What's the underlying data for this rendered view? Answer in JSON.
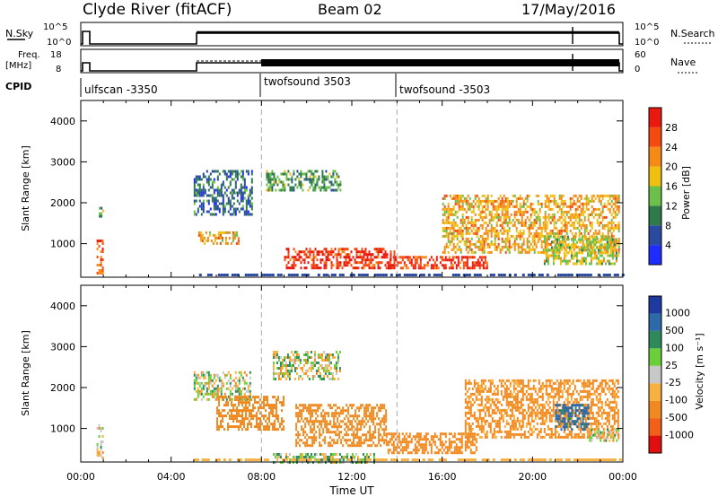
{
  "header": {
    "station": "Clyde River (fitACF)",
    "beam": "Beam 02",
    "date": "17/May/2016"
  },
  "status_panels": {
    "nsky_label": "N.Sky",
    "nsky_ticks": [
      "10^5",
      "10^0"
    ],
    "nsearch_label": "N.Search",
    "nsearch_ticks": [
      "10^5",
      "10^0"
    ],
    "freq_label_top": "Freq.",
    "freq_label_bottom": "[MHz]",
    "freq_ticks": [
      "18",
      "8"
    ],
    "nave_label": "Nave",
    "nave_ticks": [
      "60",
      "0"
    ],
    "cpid_label": "CPID",
    "cpid_segments": [
      {
        "start_hour": 0.0,
        "label": "ulfscan -3350"
      },
      {
        "start_hour": 8.0,
        "label": "twofsound 3503"
      },
      {
        "start_hour": 14.0,
        "label": "twofsound -3503"
      }
    ]
  },
  "power_colorbar": {
    "label": "Power [dB]",
    "ticks": [
      "4",
      "8",
      "12",
      "16",
      "20",
      "24",
      "28"
    ],
    "colors": [
      "#1f2cff",
      "#2a4aa0",
      "#2e7a4a",
      "#6cbf4a",
      "#f0c010",
      "#f58a18",
      "#f44a10",
      "#e81a10"
    ]
  },
  "velocity_colorbar": {
    "label": "Velocity [m s⁻¹]",
    "ticks": [
      "1000",
      "500",
      "100",
      "25",
      "-25",
      "-100",
      "-500",
      "-1000"
    ],
    "colors": [
      "#1e3aa0",
      "#2e6aa8",
      "#2e8a5a",
      "#6acf3a",
      "#c8c8c8",
      "#f8b040",
      "#f08a20",
      "#f06018",
      "#e01010"
    ]
  },
  "axes": {
    "ylabel": "Slant Range [km]",
    "yticks": [
      "1000",
      "2000",
      "3000",
      "4000"
    ],
    "xlabel": "Time UT",
    "xticks": [
      "00:00",
      "04:00",
      "08:00",
      "12:00",
      "16:00",
      "20:00",
      "00:00"
    ]
  },
  "chart_data": [
    {
      "type": "heatmap",
      "title": "",
      "quantity": "Power [dB]",
      "x_range_hours": [
        0,
        24
      ],
      "ylim": [
        180,
        4500
      ],
      "ylabel": "Slant Range [km]",
      "xlabel": "Time UT",
      "regions": [
        {
          "x": [
            0.7,
            1.0
          ],
          "y": [
            300,
            1100
          ],
          "value": 24
        },
        {
          "x": [
            0.8,
            1.0
          ],
          "y": [
            1700,
            1900
          ],
          "value": 12
        },
        {
          "x": [
            5.0,
            7.6
          ],
          "y": [
            1700,
            2800
          ],
          "value": 8
        },
        {
          "x": [
            5.2,
            7.0
          ],
          "y": [
            1000,
            1300
          ],
          "value": 20
        },
        {
          "x": [
            8.2,
            11.5
          ],
          "y": [
            2300,
            2800
          ],
          "value": 12
        },
        {
          "x": [
            9.0,
            14.0
          ],
          "y": [
            400,
            900
          ],
          "value": 28
        },
        {
          "x": [
            13.5,
            18.0
          ],
          "y": [
            400,
            700
          ],
          "value": 28
        },
        {
          "x": [
            16.0,
            23.8
          ],
          "y": [
            800,
            2200
          ],
          "value": 20
        },
        {
          "x": [
            20.5,
            23.8
          ],
          "y": [
            500,
            1200
          ],
          "value": 16
        }
      ]
    },
    {
      "type": "heatmap",
      "title": "",
      "quantity": "Velocity [m s⁻¹]",
      "x_range_hours": [
        0,
        24
      ],
      "ylim": [
        180,
        4500
      ],
      "ylabel": "Slant Range [km]",
      "xlabel": "Time UT",
      "regions": [
        {
          "x": [
            0.7,
            1.0
          ],
          "y": [
            300,
            1100
          ],
          "value": 0
        },
        {
          "x": [
            5.0,
            7.5
          ],
          "y": [
            1700,
            2400
          ],
          "value": 0
        },
        {
          "x": [
            6.0,
            9.0
          ],
          "y": [
            1000,
            1800
          ],
          "value": -300
        },
        {
          "x": [
            8.5,
            11.5
          ],
          "y": [
            2200,
            2900
          ],
          "value": 0
        },
        {
          "x": [
            9.5,
            13.5
          ],
          "y": [
            600,
            1600
          ],
          "value": -300
        },
        {
          "x": [
            8.5,
            13.0
          ],
          "y": [
            200,
            400
          ],
          "value": 60
        },
        {
          "x": [
            13.5,
            17.5
          ],
          "y": [
            400,
            900
          ],
          "value": -300
        },
        {
          "x": [
            17.0,
            23.8
          ],
          "y": [
            800,
            2200
          ],
          "value": -200
        },
        {
          "x": [
            21.0,
            22.5
          ],
          "y": [
            1000,
            1600
          ],
          "value": 600
        },
        {
          "x": [
            22.5,
            23.8
          ],
          "y": [
            700,
            1000
          ],
          "value": 0
        }
      ]
    }
  ]
}
